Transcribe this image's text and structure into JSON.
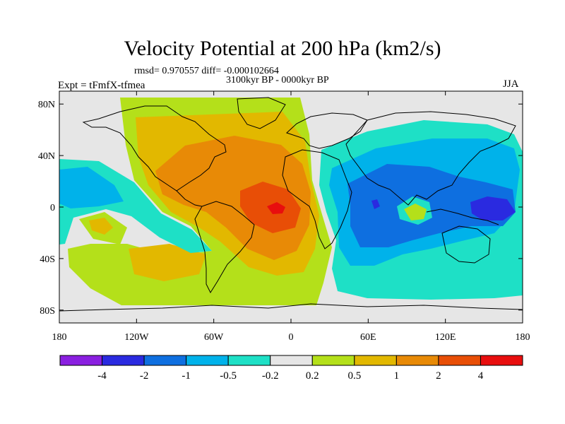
{
  "title": "Velocity Potential at 200 hPa (km2/s)",
  "stats": "rmsd= 0.970557 diff= -0.000102664",
  "period": "3100kyr BP - 0000kyr BP",
  "left_label": "Expt = tFmfX-tfmea",
  "right_label": "JJA",
  "map": {
    "projection": "cylindrical equidistant",
    "lon_range": [
      -180,
      180
    ],
    "lat_range": [
      -90,
      90
    ],
    "lat_ticks": [
      {
        "value": 80,
        "label": "80N"
      },
      {
        "value": 40,
        "label": "40N"
      },
      {
        "value": 0,
        "label": "0"
      },
      {
        "value": -40,
        "label": "40S"
      },
      {
        "value": -80,
        "label": "80S"
      }
    ],
    "lon_ticks": [
      {
        "value": -180,
        "label": "180"
      },
      {
        "value": -120,
        "label": "120W"
      },
      {
        "value": -60,
        "label": "60W"
      },
      {
        "value": 0,
        "label": "0"
      },
      {
        "value": 60,
        "label": "60E"
      },
      {
        "value": 120,
        "label": "120E"
      },
      {
        "value": 180,
        "label": "180"
      }
    ]
  },
  "colorbar": {
    "colors": [
      "#8a1fe0",
      "#2a2ae0",
      "#0e6fe0",
      "#00b2ea",
      "#1ee0c6",
      "#e6e6e6",
      "#b4e01a",
      "#e2b800",
      "#e88a06",
      "#e84e06",
      "#e80e0e"
    ],
    "labels": [
      "-4",
      "-2",
      "-1",
      "-0.5",
      "-0.2",
      "0.2",
      "0.5",
      "1",
      "2",
      "4"
    ]
  },
  "chart_data": {
    "type": "heatmap",
    "title": "Velocity Potential at 200 hPa (km2/s)",
    "units": "km2/s",
    "levels": [
      -4,
      -2,
      -1,
      -0.5,
      -0.2,
      0.2,
      0.5,
      1,
      2,
      4
    ],
    "features": [
      {
        "name": "positive anomaly centre, tropical Atlantic",
        "lon": -5,
        "lat": 0,
        "value": 4
      },
      {
        "name": "positive anomaly, Caribbean / subtropical Atlantic",
        "lon": -50,
        "lat": 25,
        "value": 2
      },
      {
        "name": "weak positive, North America / Greenland",
        "lon": -90,
        "lat": 65,
        "value": 0.5
      },
      {
        "name": "weak positive, South Pacific",
        "lon": -90,
        "lat": -35,
        "value": 0.5
      },
      {
        "name": "negative anomaly centre, western Pacific",
        "lon": 155,
        "lat": 0,
        "value": -2
      },
      {
        "name": "negative anomaly, Indian Ocean / Asia",
        "lon": 70,
        "lat": 10,
        "value": -1
      },
      {
        "name": "negative anomaly, eastern Pacific",
        "lon": -170,
        "lat": 25,
        "value": -0.5
      },
      {
        "name": "weak positive, Bay of Bengal",
        "lon": 95,
        "lat": -2,
        "value": 0.5
      }
    ]
  }
}
